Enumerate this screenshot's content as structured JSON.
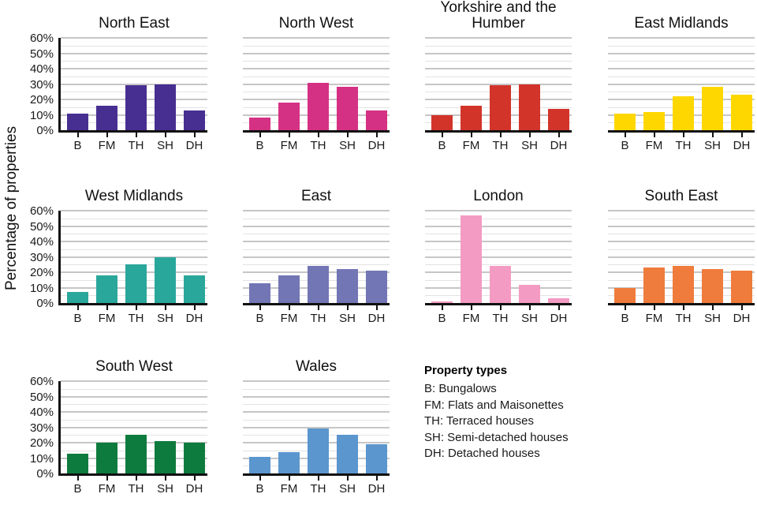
{
  "axis": {
    "ylabel": "Percentage of properties",
    "y_ticks": [
      "60%",
      "50%",
      "40%",
      "30%",
      "20%",
      "10%",
      "0%"
    ],
    "x_categories": [
      "B",
      "FM",
      "TH",
      "SH",
      "DH"
    ]
  },
  "legend": {
    "title": "Property types",
    "items": [
      "B: Bungalows",
      "FM: Flats and Maisonettes",
      "TH: Terraced houses",
      "SH: Semi-detached houses",
      "DH: Detached houses"
    ]
  },
  "chart_data": {
    "type": "bar",
    "layout": "small multiples, 4 columns x 3 rows, y tick labels only on first chart of each row, horizontal gridlines major every 10% and minor every 5%, legend panel in last row",
    "categories": [
      "B",
      "FM",
      "TH",
      "SH",
      "DH"
    ],
    "ylabel": "Percentage of properties",
    "ylim": [
      0,
      60
    ],
    "y_tick_step": 10,
    "series": [
      {
        "name": "North East",
        "color": "#472f91",
        "values": [
          11,
          16,
          29,
          30,
          13
        ]
      },
      {
        "name": "North West",
        "color": "#d53184",
        "values": [
          8,
          18,
          31,
          28,
          13
        ]
      },
      {
        "name": "Yorkshire and the Humber",
        "color": "#d2342a",
        "values": [
          10,
          16,
          29,
          30,
          14
        ]
      },
      {
        "name": "East Midlands",
        "color": "#ffd700",
        "values": [
          11,
          12,
          22,
          28,
          23
        ]
      },
      {
        "name": "West Midlands",
        "color": "#2aa79b",
        "values": [
          7,
          18,
          25,
          30,
          18
        ]
      },
      {
        "name": "East",
        "color": "#7276b4",
        "values": [
          13,
          18,
          24,
          22,
          21
        ]
      },
      {
        "name": "London",
        "color": "#f49bc3",
        "values": [
          1,
          57,
          24,
          12,
          3
        ]
      },
      {
        "name": "South East",
        "color": "#ef7c3c",
        "values": [
          10,
          23,
          24,
          22,
          21
        ]
      },
      {
        "name": "South West",
        "color": "#0e7b3e",
        "values": [
          13,
          20,
          25,
          21,
          20
        ]
      },
      {
        "name": "Wales",
        "color": "#5b96ce",
        "values": [
          11,
          14,
          29,
          25,
          19
        ]
      }
    ]
  }
}
